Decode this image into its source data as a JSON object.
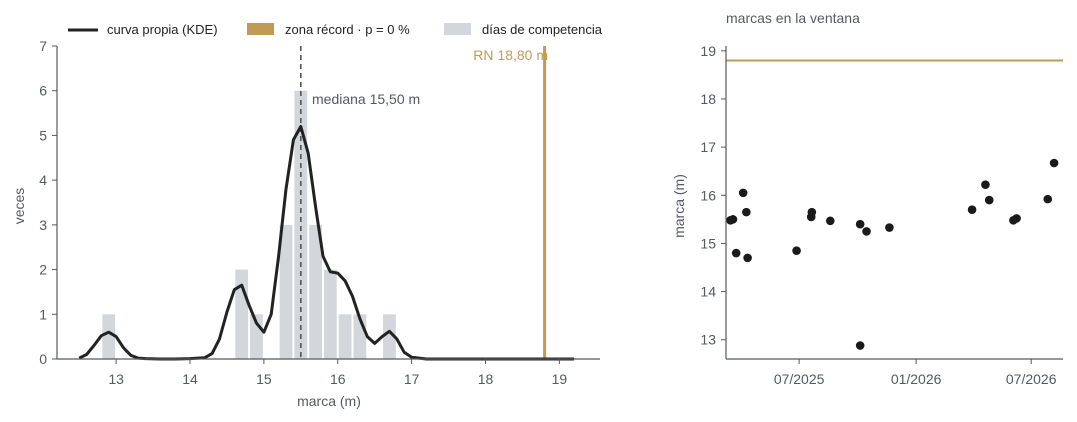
{
  "colors": {
    "kde": "#222222",
    "bars": "#d3d6da",
    "record": "#c29a55",
    "median": "#555555",
    "points": "#1a1a1a",
    "axis": "#555a60",
    "text": "#555a60"
  },
  "chart_data": [
    {
      "type": "bar",
      "xlabel": "marca (m)",
      "ylabel": "veces",
      "xlim": [
        12.2,
        19.55
      ],
      "ylim": [
        0,
        7
      ],
      "xticks": [
        "13",
        "14",
        "15",
        "16",
        "17",
        "18",
        "19"
      ],
      "yticks": [
        "0",
        "1",
        "2",
        "3",
        "4",
        "5",
        "6",
        "7"
      ],
      "legend": [
        {
          "label": "curva propia (KDE)",
          "kind": "line"
        },
        {
          "label": "zona récord · p = 0 %",
          "kind": "patch-gold"
        },
        {
          "label": "días de competencia",
          "kind": "patch-grey"
        }
      ],
      "bin_width": 0.2,
      "histogram": [
        {
          "center": 12.9,
          "count": 1
        },
        {
          "center": 14.7,
          "count": 2
        },
        {
          "center": 14.9,
          "count": 1
        },
        {
          "center": 15.3,
          "count": 3
        },
        {
          "center": 15.5,
          "count": 6
        },
        {
          "center": 15.7,
          "count": 3
        },
        {
          "center": 15.9,
          "count": 2
        },
        {
          "center": 16.1,
          "count": 1
        },
        {
          "center": 16.3,
          "count": 1
        },
        {
          "center": 16.7,
          "count": 1
        }
      ],
      "kde": {
        "x": [
          12.5,
          12.6,
          12.7,
          12.8,
          12.9,
          13.0,
          13.1,
          13.2,
          13.3,
          13.4,
          13.6,
          13.8,
          14.0,
          14.2,
          14.3,
          14.4,
          14.5,
          14.6,
          14.7,
          14.8,
          14.9,
          15.0,
          15.1,
          15.2,
          15.3,
          15.4,
          15.5,
          15.6,
          15.7,
          15.8,
          15.9,
          16.0,
          16.1,
          16.2,
          16.3,
          16.4,
          16.5,
          16.6,
          16.7,
          16.8,
          16.9,
          17.0,
          17.2,
          17.5,
          18.0,
          18.5,
          19.0,
          19.2
        ],
        "y": [
          0.02,
          0.1,
          0.3,
          0.52,
          0.6,
          0.5,
          0.25,
          0.08,
          0.02,
          0.01,
          0.0,
          0.0,
          0.01,
          0.03,
          0.12,
          0.45,
          1.05,
          1.55,
          1.65,
          1.2,
          0.8,
          0.6,
          1.0,
          2.3,
          3.8,
          4.9,
          5.2,
          4.6,
          3.4,
          2.3,
          1.95,
          1.92,
          1.75,
          1.4,
          0.9,
          0.5,
          0.35,
          0.5,
          0.62,
          0.45,
          0.15,
          0.04,
          0.0,
          0.0,
          0.0,
          0.0,
          0.0,
          0.0
        ]
      },
      "median": {
        "value": 15.5,
        "label": "mediana 15,50 m"
      },
      "record": {
        "value": 18.8,
        "label": "RN 18,80 m"
      }
    },
    {
      "type": "scatter",
      "title": "marcas en la ventana",
      "xlabel": "",
      "ylabel": "marca (m)",
      "xlim": [
        "2025-03-08",
        "2026-08-20"
      ],
      "ylim": [
        12.6,
        19.1
      ],
      "xticks": [
        {
          "date": "2025-07-01",
          "label": "07/2025"
        },
        {
          "date": "2026-01-01",
          "label": "01/2026"
        },
        {
          "date": "2026-07-01",
          "label": "07/2026"
        }
      ],
      "yticks": [
        "13",
        "14",
        "15",
        "16",
        "17",
        "18",
        "19"
      ],
      "record_line": 18.8,
      "points": [
        {
          "date": "2025-03-15",
          "value": 15.48
        },
        {
          "date": "2025-03-19",
          "value": 15.5
        },
        {
          "date": "2025-03-24",
          "value": 14.8
        },
        {
          "date": "2025-04-04",
          "value": 16.05
        },
        {
          "date": "2025-04-09",
          "value": 15.65
        },
        {
          "date": "2025-04-11",
          "value": 14.7
        },
        {
          "date": "2025-06-27",
          "value": 14.85
        },
        {
          "date": "2025-07-20",
          "value": 15.55
        },
        {
          "date": "2025-07-21",
          "value": 15.65
        },
        {
          "date": "2025-08-19",
          "value": 15.47
        },
        {
          "date": "2025-10-05",
          "value": 12.88
        },
        {
          "date": "2025-10-05",
          "value": 15.4
        },
        {
          "date": "2025-10-15",
          "value": 15.25
        },
        {
          "date": "2025-11-20",
          "value": 15.33
        },
        {
          "date": "2026-03-30",
          "value": 15.7
        },
        {
          "date": "2026-04-20",
          "value": 16.22
        },
        {
          "date": "2026-04-26",
          "value": 15.9
        },
        {
          "date": "2026-06-03",
          "value": 15.48
        },
        {
          "date": "2026-06-08",
          "value": 15.52
        },
        {
          "date": "2026-07-27",
          "value": 15.92
        },
        {
          "date": "2026-08-06",
          "value": 16.67
        }
      ]
    }
  ]
}
